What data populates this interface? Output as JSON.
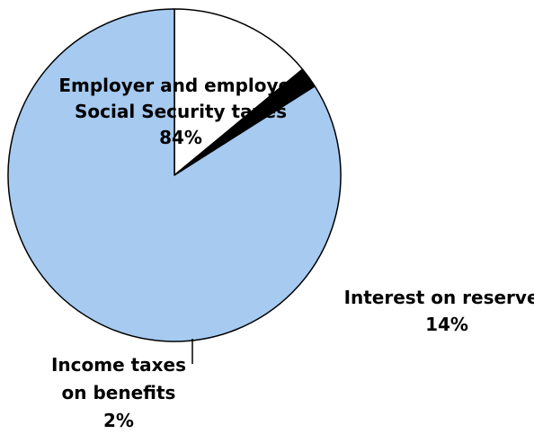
{
  "chart_data": {
    "type": "pie",
    "title": "",
    "start_angle_deg": 0,
    "direction": "clockwise",
    "slices": [
      {
        "label_lines": [
          "Interest on reserves",
          "14%"
        ],
        "value": 14,
        "color": "#ffffff"
      },
      {
        "label_lines": [
          "Income taxes",
          "on benefits",
          "2%"
        ],
        "value": 2,
        "color": "#000000"
      },
      {
        "label_lines": [
          "Employer and employee",
          "Social Security taxes",
          "84%"
        ],
        "value": 84,
        "color": "#a6caf0"
      }
    ],
    "legend": "none"
  }
}
